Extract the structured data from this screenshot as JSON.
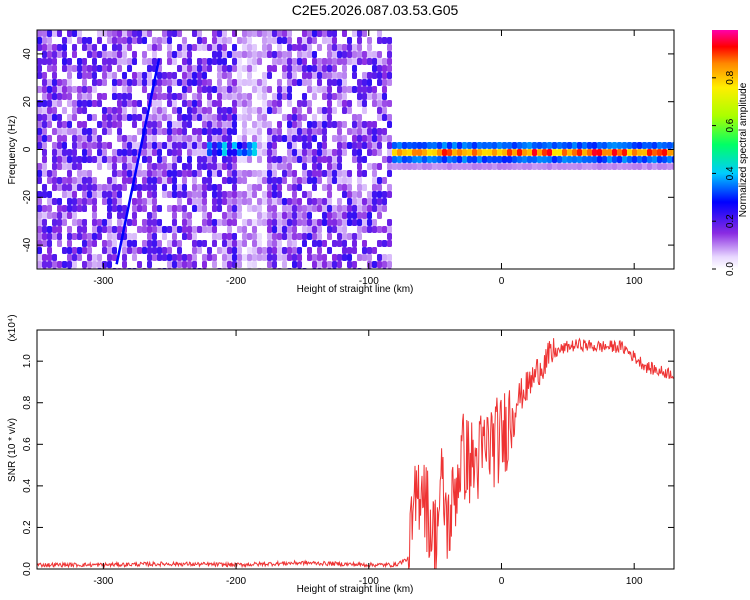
{
  "title": "C2E5.2026.087.03.53.G05",
  "colorbar": {
    "label": "Normalized spectral amplitude",
    "ticks": [
      "0.0",
      "0.2",
      "0.4",
      "0.6",
      "0.8"
    ],
    "tick_values": [
      0,
      0.2,
      0.4,
      0.6,
      0.8
    ],
    "range": [
      0,
      1
    ]
  },
  "chart_data": [
    {
      "type": "heatmap",
      "xlabel": "Height of straight line (km)",
      "ylabel": "Frequency (Hz)",
      "xlim": [
        -350,
        130
      ],
      "ylim": [
        -50,
        50
      ],
      "xticks": [
        "-300",
        "-200",
        "-100",
        "0",
        "100"
      ],
      "xtick_values": [
        -300,
        -200,
        -100,
        0,
        100
      ],
      "yticks": [
        "-40",
        "-20",
        "0",
        "20",
        "40"
      ],
      "ytick_values": [
        -40,
        -20,
        0,
        20,
        40
      ],
      "regions": [
        {
          "x_range": [
            -350,
            -85
          ],
          "f_range": [
            -50,
            50
          ],
          "amplitude": 0.15,
          "texture": "noise"
        },
        {
          "x_range": [
            -225,
            -185
          ],
          "f_range": [
            0,
            5
          ],
          "amplitude": 0.35,
          "texture": "blob"
        },
        {
          "x_range": [
            -85,
            130
          ],
          "f_range": [
            -3,
            3
          ],
          "amplitude": 0.9,
          "texture": "line"
        }
      ],
      "streak": {
        "x": [
          -290,
          -258
        ],
        "f": [
          -48,
          38
        ],
        "amplitude": 0.2
      }
    },
    {
      "type": "line",
      "xlabel": "Height of straight line (km)",
      "ylabel": "SNR (10 * v/v)",
      "multiplier": "(x10⁴)",
      "xlim": [
        -350,
        130
      ],
      "ylim": [
        0,
        1.15
      ],
      "xticks": [
        "-300",
        "-200",
        "-100",
        "0",
        "100"
      ],
      "xtick_values": [
        -300,
        -200,
        -100,
        0,
        100
      ],
      "yticks": [
        "0.0",
        "0.2",
        "0.4",
        "0.6",
        "0.8",
        "1.0"
      ],
      "ytick_values": [
        0,
        0.2,
        0.4,
        0.6,
        0.8,
        1.0
      ],
      "color": "#ee3333",
      "series": [
        {
          "x": [
            -350,
            -300,
            -250,
            -200,
            -150,
            -100,
            -80,
            -70,
            -65,
            -60,
            -55,
            -50,
            -45,
            -40,
            -30,
            -20,
            -10,
            0,
            10,
            20,
            30,
            40,
            50,
            60,
            70,
            80,
            90,
            95,
            100,
            110,
            120,
            130
          ],
          "values": [
            0.02,
            0.02,
            0.025,
            0.02,
            0.03,
            0.02,
            0.02,
            0.05,
            0.3,
            0.45,
            0.25,
            0.15,
            0.4,
            0.2,
            0.55,
            0.5,
            0.6,
            0.62,
            0.8,
            0.88,
            0.98,
            1.04,
            1.07,
            1.08,
            1.07,
            1.07,
            1.07,
            1.05,
            1.02,
            0.97,
            0.95,
            0.94
          ]
        }
      ]
    }
  ]
}
